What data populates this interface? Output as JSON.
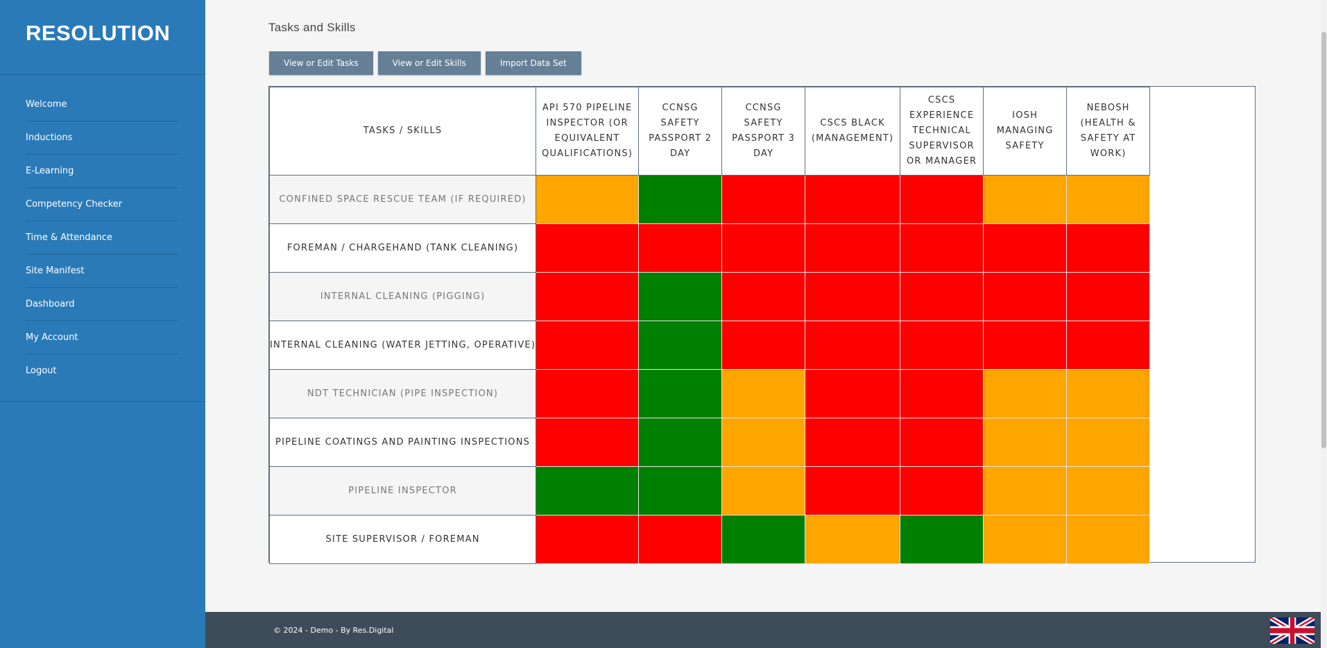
{
  "app": {
    "logo_text": "RESOLUTION"
  },
  "sidebar": {
    "items": [
      {
        "label": "Welcome"
      },
      {
        "label": "Inductions"
      },
      {
        "label": "E-Learning"
      },
      {
        "label": "Competency Checker"
      },
      {
        "label": "Time & Attendance"
      },
      {
        "label": "Site Manifest"
      },
      {
        "label": "Dashboard"
      },
      {
        "label": "My Account"
      },
      {
        "label": "Logout"
      }
    ]
  },
  "main": {
    "title": "Tasks and Skills",
    "buttons": {
      "view_tasks": "View or Edit Tasks",
      "view_skills": "View or Edit Skills",
      "import": "Import Data Set"
    },
    "matrix": {
      "corner_header": "TASKS / SKILLS",
      "skills": [
        "API 570 PIPELINE INSPECTOR (OR EQUIVALENT QUALIFICATIONS)",
        "CCNSG SAFETY PASSPORT 2 DAY",
        "CCNSG SAFETY PASSPORT 3 DAY",
        "CSCS BLACK (MANAGEMENT)",
        "CSCS EXPERIENCE TECHNICAL SUPERVISOR OR MANAGER",
        "IOSH MANAGING SAFETY",
        "NEBOSH (HEALTH & SAFETY AT WORK)"
      ],
      "status_colors": {
        "red": "#ff0000",
        "green": "#008000",
        "amber": "#ffa500"
      },
      "rows": [
        {
          "task": "CONFINED SPACE RESCUE TEAM (IF REQUIRED)",
          "cells": [
            "amber",
            "green",
            "red",
            "red",
            "red",
            "amber",
            "amber"
          ]
        },
        {
          "task": "FOREMAN / CHARGEHAND (TANK CLEANING)",
          "cells": [
            "red",
            "red",
            "red",
            "red",
            "red",
            "red",
            "red"
          ]
        },
        {
          "task": "INTERNAL CLEANING (PIGGING)",
          "cells": [
            "red",
            "green",
            "red",
            "red",
            "red",
            "red",
            "red"
          ]
        },
        {
          "task": "INTERNAL CLEANING (WATER JETTING, OPERATIVE)",
          "cells": [
            "red",
            "green",
            "red",
            "red",
            "red",
            "red",
            "red"
          ]
        },
        {
          "task": "NDT TECHNICIAN (PIPE INSPECTION)",
          "cells": [
            "red",
            "green",
            "amber",
            "red",
            "red",
            "amber",
            "amber"
          ]
        },
        {
          "task": "PIPELINE COATINGS AND PAINTING INSPECTIONS",
          "cells": [
            "red",
            "green",
            "amber",
            "red",
            "red",
            "amber",
            "amber"
          ]
        },
        {
          "task": "PIPELINE INSPECTOR",
          "cells": [
            "green",
            "green",
            "amber",
            "red",
            "red",
            "amber",
            "amber"
          ]
        },
        {
          "task": "SITE SUPERVISOR / FOREMAN",
          "cells": [
            "red",
            "red",
            "green",
            "amber",
            "green",
            "amber",
            "amber"
          ]
        }
      ]
    }
  },
  "footer": {
    "copyright": "© 2024 - Demo - By Res.Digital",
    "flag_icon": "uk-flag-icon"
  }
}
